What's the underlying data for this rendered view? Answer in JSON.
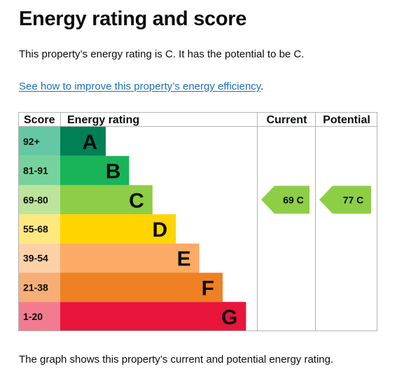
{
  "page": {
    "title": "Energy rating and score",
    "summary": "This property’s energy rating is C. It has the potential to be C.",
    "link_text": "See how to improve this property’s energy efficiency",
    "link_suffix": ".",
    "footer": "The graph shows this property’s current and potential energy rating."
  },
  "chart_data": {
    "type": "bar",
    "headers": {
      "score": "Score",
      "rating": "Energy rating",
      "current": "Current",
      "potential": "Potential"
    },
    "bands": [
      {
        "score": "92+",
        "letter": "A",
        "color": "#008054",
        "score_bg": "#64c8a4",
        "relative_length": 1
      },
      {
        "score": "81-91",
        "letter": "B",
        "color": "#19b459",
        "score_bg": "#75d29c",
        "relative_length": 2
      },
      {
        "score": "69-80",
        "letter": "C",
        "color": "#8dce46",
        "score_bg": "#bce59b",
        "relative_length": 3
      },
      {
        "score": "55-68",
        "letter": "D",
        "color": "#ffd500",
        "score_bg": "#ffe97f",
        "relative_length": 4
      },
      {
        "score": "39-54",
        "letter": "E",
        "color": "#fcaa65",
        "score_bg": "#fdd1a8",
        "relative_length": 5
      },
      {
        "score": "21-38",
        "letter": "F",
        "color": "#ef8023",
        "score_bg": "#f6ae76",
        "relative_length": 6
      },
      {
        "score": "1-20",
        "letter": "G",
        "color": "#e9153b",
        "score_bg": "#f27b8f",
        "relative_length": 7
      }
    ],
    "current": {
      "value": 69,
      "letter": "C",
      "label": "69 C",
      "color": "#8dce46"
    },
    "potential": {
      "value": 77,
      "letter": "C",
      "label": "77 C",
      "color": "#8dce46"
    },
    "grid_color": "#b1b4b6"
  }
}
